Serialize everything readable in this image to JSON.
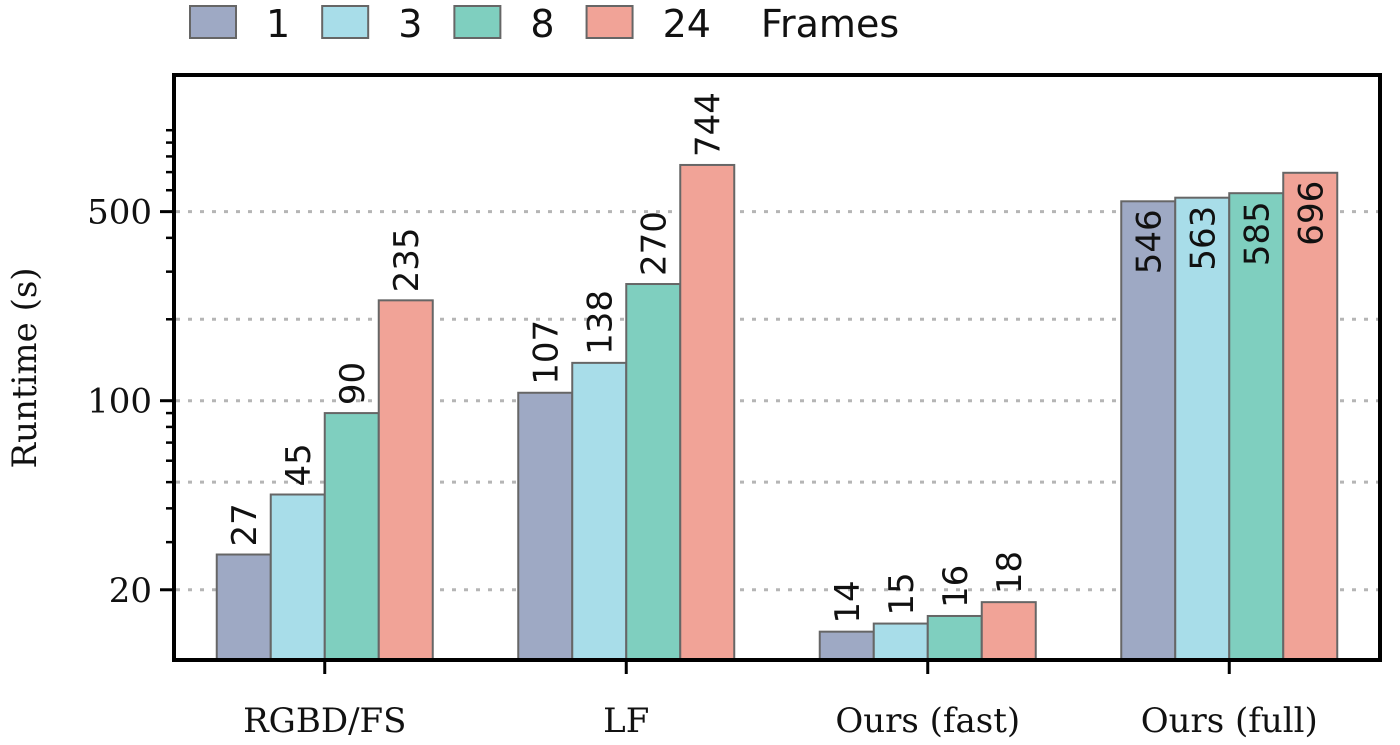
{
  "chart_data": {
    "type": "bar",
    "title": "",
    "xlabel": "",
    "ylabel": "Runtime (s)",
    "yscale": "log",
    "ylim": [
      11,
      1600
    ],
    "yticks": [
      20,
      100,
      500
    ],
    "ytick_labels": [
      "20",
      "100",
      "500"
    ],
    "grid_values": [
      20,
      50,
      100,
      200,
      500
    ],
    "categories": [
      "RGBD/FS",
      "LF",
      "Ours (fast)",
      "Ours (full)"
    ],
    "legend_title": "Frames",
    "legend_position": "top",
    "series": [
      {
        "name": "1",
        "color": "#9ea9c4",
        "values": [
          27,
          107,
          14,
          546
        ],
        "labels": [
          "27",
          "107",
          "14",
          "546"
        ]
      },
      {
        "name": "3",
        "color": "#a8dde9",
        "values": [
          45,
          138,
          15,
          563
        ],
        "labels": [
          "45",
          "138",
          "15",
          "563"
        ]
      },
      {
        "name": "8",
        "color": "#7fcfbf",
        "values": [
          90,
          270,
          16,
          585
        ],
        "labels": [
          "90",
          "270",
          "16",
          "585"
        ]
      },
      {
        "name": "24",
        "color": "#f1a397",
        "values": [
          235,
          744,
          18,
          696
        ],
        "labels": [
          "235",
          "744",
          "18",
          "696"
        ]
      }
    ],
    "label_inside_categories": [
      "Ours (full)"
    ]
  }
}
